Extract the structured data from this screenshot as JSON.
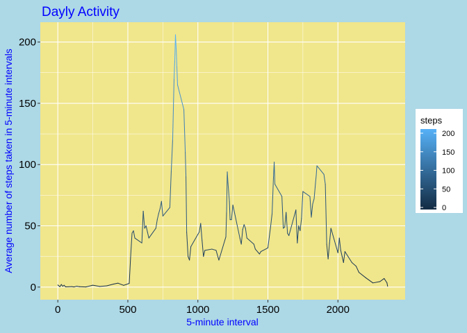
{
  "chart_data": {
    "type": "line",
    "title": "Dayly Activity",
    "xlabel": "5-minute interval",
    "ylabel": "Average number of steps taken in 5-minute intervals",
    "xlim": [
      -125,
      2480
    ],
    "ylim": [
      -10.3,
      216.2
    ],
    "x_ticks": [
      0,
      500,
      1000,
      1500,
      2000
    ],
    "y_ticks": [
      0,
      50,
      100,
      150,
      200
    ],
    "grid": true,
    "legend": {
      "title": "steps",
      "placement": "right",
      "ticks": [
        0,
        50,
        100,
        150,
        200
      ],
      "color_low": "#132b43",
      "color_high": "#56b1f7"
    },
    "colors": {
      "page_background": "#add8e6",
      "panel_background": "#f0e68c",
      "grid": "#ffffff",
      "title": "#0000ff",
      "axis_labels": "#0000ff"
    },
    "series": [
      {
        "x": [
          0,
          15,
          25,
          35,
          45,
          55,
          100,
          115,
          135,
          155,
          200,
          250,
          300,
          350,
          400,
          430,
          470,
          510,
          520,
          530,
          540,
          550,
          600,
          610,
          620,
          630,
          640,
          650,
          700,
          710,
          720,
          730,
          740,
          750,
          800,
          810,
          820,
          830,
          835,
          840,
          845,
          850,
          855,
          900,
          910,
          915,
          920,
          930,
          940,
          950,
          1000,
          1010,
          1020,
          1030,
          1040,
          1050,
          1100,
          1130,
          1150,
          1200,
          1205,
          1210,
          1215,
          1225,
          1230,
          1240,
          1250,
          1300,
          1310,
          1320,
          1330,
          1340,
          1350,
          1400,
          1410,
          1440,
          1450,
          1500,
          1520,
          1530,
          1540,
          1545,
          1550,
          1600,
          1610,
          1620,
          1630,
          1640,
          1650,
          1700,
          1710,
          1720,
          1730,
          1740,
          1750,
          1800,
          1810,
          1820,
          1830,
          1840,
          1845,
          1850,
          1900,
          1910,
          1920,
          1930,
          1940,
          1950,
          2000,
          2010,
          2020,
          2030,
          2040,
          2050,
          2100,
          2130,
          2150,
          2200,
          2250,
          2300,
          2330,
          2350,
          2355
        ],
        "y": [
          1.7,
          0.3,
          2.1,
          0.6,
          1.5,
          0.2,
          0.4,
          0.1,
          0.7,
          0.3,
          0.1,
          1.5,
          0.5,
          1.0,
          2.5,
          3.2,
          1.4,
          3.0,
          25,
          44,
          46,
          40,
          36,
          62,
          48,
          50,
          45,
          40,
          48,
          55,
          60,
          64,
          70,
          58,
          65,
          95,
          120,
          170,
          185,
          206,
          195,
          180,
          165,
          145,
          110,
          90,
          45,
          25,
          22,
          33,
          43,
          45,
          52,
          38,
          25,
          30,
          31,
          30,
          22,
          41,
          61,
          94,
          85,
          70,
          55,
          55,
          67,
          40,
          35,
          47,
          51,
          48,
          40,
          35,
          31,
          27,
          29,
          32,
          50,
          60,
          90,
          102,
          84,
          74,
          48,
          49,
          61,
          44,
          42,
          63,
          36,
          50,
          46,
          56,
          78,
          74,
          57,
          68,
          72,
          85,
          91,
          99,
          92,
          84,
          35,
          23,
          36,
          48,
          28,
          40,
          30,
          25,
          20,
          29,
          20,
          17,
          12,
          7.5,
          3.4,
          4.5,
          7,
          3.5,
          0.6
        ]
      }
    ]
  }
}
